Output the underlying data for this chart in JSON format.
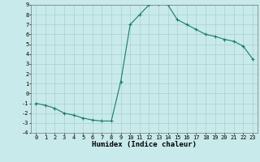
{
  "x": [
    0,
    1,
    2,
    3,
    4,
    5,
    6,
    7,
    8,
    9,
    10,
    11,
    12,
    13,
    14,
    15,
    16,
    17,
    18,
    19,
    20,
    21,
    22,
    23
  ],
  "y": [
    -1,
    -1.2,
    -1.5,
    -2,
    -2.2,
    -2.5,
    -2.7,
    -2.8,
    -2.8,
    1.2,
    7,
    8,
    9,
    9.1,
    9,
    7.5,
    7,
    6.5,
    6,
    5.8,
    5.5,
    5.3,
    4.8,
    3.5
  ],
  "line_color": "#1a7a6e",
  "marker": "+",
  "bg_color": "#c8eaea",
  "grid_color": "#aad0d0",
  "xlabel": "Humidex (Indice chaleur)",
  "ylim": [
    -4,
    9
  ],
  "xlim": [
    -0.5,
    23.5
  ],
  "yticks": [
    -4,
    -3,
    -2,
    -1,
    0,
    1,
    2,
    3,
    4,
    5,
    6,
    7,
    8,
    9
  ],
  "xticks": [
    0,
    1,
    2,
    3,
    4,
    5,
    6,
    7,
    8,
    9,
    10,
    11,
    12,
    13,
    14,
    15,
    16,
    17,
    18,
    19,
    20,
    21,
    22,
    23
  ],
  "label_fontsize": 6.5,
  "tick_fontsize": 5.0
}
